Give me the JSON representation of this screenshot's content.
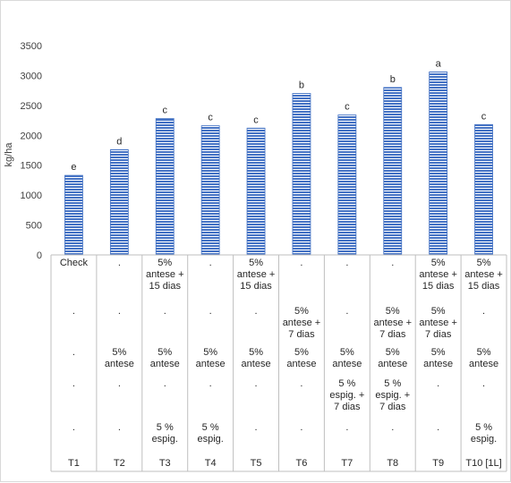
{
  "chart_data": {
    "type": "bar",
    "categories": [
      "T1",
      "T2",
      "T3",
      "T4",
      "T5",
      "T6",
      "T7",
      "T8",
      "T9",
      "T10 [1L]"
    ],
    "values": [
      1330,
      1760,
      2280,
      2160,
      2120,
      2700,
      2340,
      2800,
      3060,
      2180
    ],
    "letters": [
      "e",
      "d",
      "c",
      "c",
      "c",
      "b",
      "c",
      "b",
      "a",
      "c"
    ],
    "ylabel": "kg/ha",
    "xlabel": "",
    "title": "",
    "ylim": [
      0,
      3500
    ],
    "yticks": [
      "0",
      "500",
      "1000",
      "1500",
      "2000",
      "2500",
      "3000",
      "3500"
    ],
    "grid": false,
    "legend": "none",
    "bar_color": "#4472c4",
    "table_rows": [
      [
        "Check",
        ".",
        "5%\nantese +\n15 dias",
        ".",
        "5%\nantese +\n15 dias",
        ".",
        ".",
        ".",
        "5%\nantese +\n15 dias",
        "5%\nantese +\n15 dias"
      ],
      [
        ".",
        ".",
        ".",
        ".",
        ".",
        "5%\nantese +\n7 dias",
        ".",
        "5%\nantese +\n7 dias",
        "5%\nantese +\n7 dias",
        "."
      ],
      [
        ".",
        "5%\nantese",
        "5%\nantese",
        "5%\nantese",
        "5%\nantese",
        "5%\nantese",
        "5%\nantese",
        "5%\nantese",
        "5%\nantese",
        "5%\nantese"
      ],
      [
        ".",
        ".",
        ".",
        ".",
        ".",
        ".",
        "5 %\nespig. +\n7 dias",
        "5 %\nespig. +\n7 dias",
        ".",
        "."
      ],
      [
        ".",
        ".",
        "5 %\nespig.",
        "5 %\nespig.",
        ".",
        ".",
        ".",
        ".",
        ".",
        "5 %\nespig."
      ]
    ]
  }
}
